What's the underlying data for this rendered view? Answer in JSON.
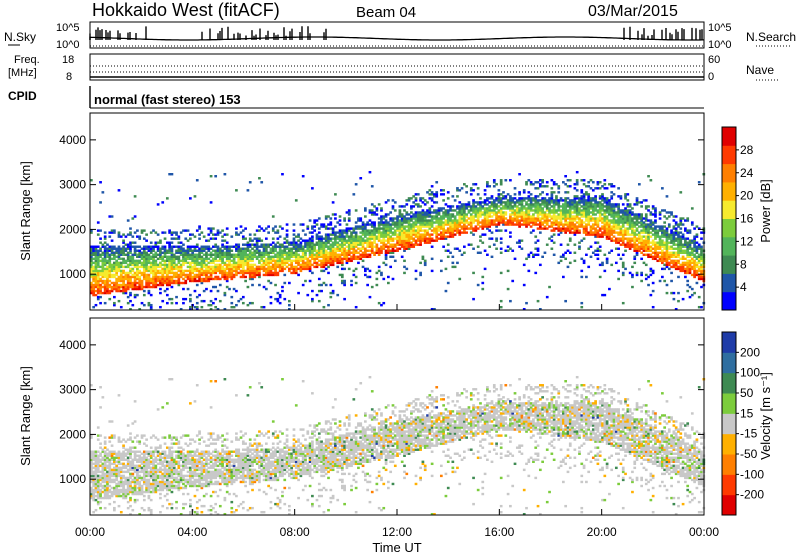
{
  "header": {
    "station": "Hokkaido West (fitACF)",
    "beam": "Beam 04",
    "date": "03/Mar/2015"
  },
  "strips": {
    "nsky_label": "N.Sky",
    "nsearch_label": "N.Search",
    "left_ticks": [
      "10^5",
      "10^0"
    ],
    "right_ticks": [
      "10^5",
      "10^0"
    ],
    "freq_label_1": "Freq.",
    "freq_label_2": "[MHz]",
    "freq_ticks": [
      "18",
      "8"
    ],
    "nave_label": "Nave",
    "nave_ticks": [
      "60",
      "0"
    ],
    "cpid_label": "CPID",
    "cpid_text": "normal (fast stereo) 153"
  },
  "chart_data": [
    {
      "type": "heatmap",
      "panel": "power",
      "ylabel": "Slant Range [km]",
      "ylim": [
        200,
        4600
      ],
      "y_ticks": [
        "1000",
        "2000",
        "3000",
        "4000"
      ],
      "xlim_hours": [
        0,
        24
      ],
      "colorbar_label": "Power [dB]",
      "colorbar_ticks": [
        "28",
        "24",
        "20",
        "16",
        "12",
        "8",
        "4"
      ],
      "colors": [
        "#0000ff",
        "#1f56a8",
        "#3e8a52",
        "#52b45a",
        "#7ccc3c",
        "#f6ea2e",
        "#ffb000",
        "#ff7f00",
        "#ff3a00",
        "#e00000"
      ],
      "echo_band_summary": [
        {
          "time": "00:00",
          "range_low": 500,
          "range_high": 1600
        },
        {
          "time": "04:00",
          "range_low": 800,
          "range_high": 1600
        },
        {
          "time": "08:00",
          "range_low": 1000,
          "range_high": 1700
        },
        {
          "time": "12:00",
          "range_low": 1500,
          "range_high": 2300
        },
        {
          "time": "16:00",
          "range_low": 2100,
          "range_high": 2700
        },
        {
          "time": "20:00",
          "range_low": 1800,
          "range_high": 2700
        },
        {
          "time": "24:00",
          "range_low": 800,
          "range_high": 1600
        }
      ]
    },
    {
      "type": "heatmap",
      "panel": "velocity",
      "ylabel": "Slant Range [km]",
      "ylim": [
        200,
        4600
      ],
      "y_ticks": [
        "1000",
        "2000",
        "3000",
        "4000"
      ],
      "xlim_hours": [
        0,
        24
      ],
      "xlabel": "Time UT",
      "x_ticks": [
        "00:00",
        "04:00",
        "08:00",
        "12:00",
        "16:00",
        "20:00",
        "00:00"
      ],
      "colorbar_label": "Velocity [m s⁻¹]",
      "colorbar_ticks": [
        "200",
        "100",
        "50",
        "15",
        "-15",
        "-50",
        "-100",
        "-200"
      ],
      "colors": [
        "#1f3ca8",
        "#2f6ea0",
        "#3e8a52",
        "#7ccc3c",
        "#c8c8c8",
        "#ffb000",
        "#ff7f00",
        "#ff3a00",
        "#e00000"
      ]
    }
  ]
}
